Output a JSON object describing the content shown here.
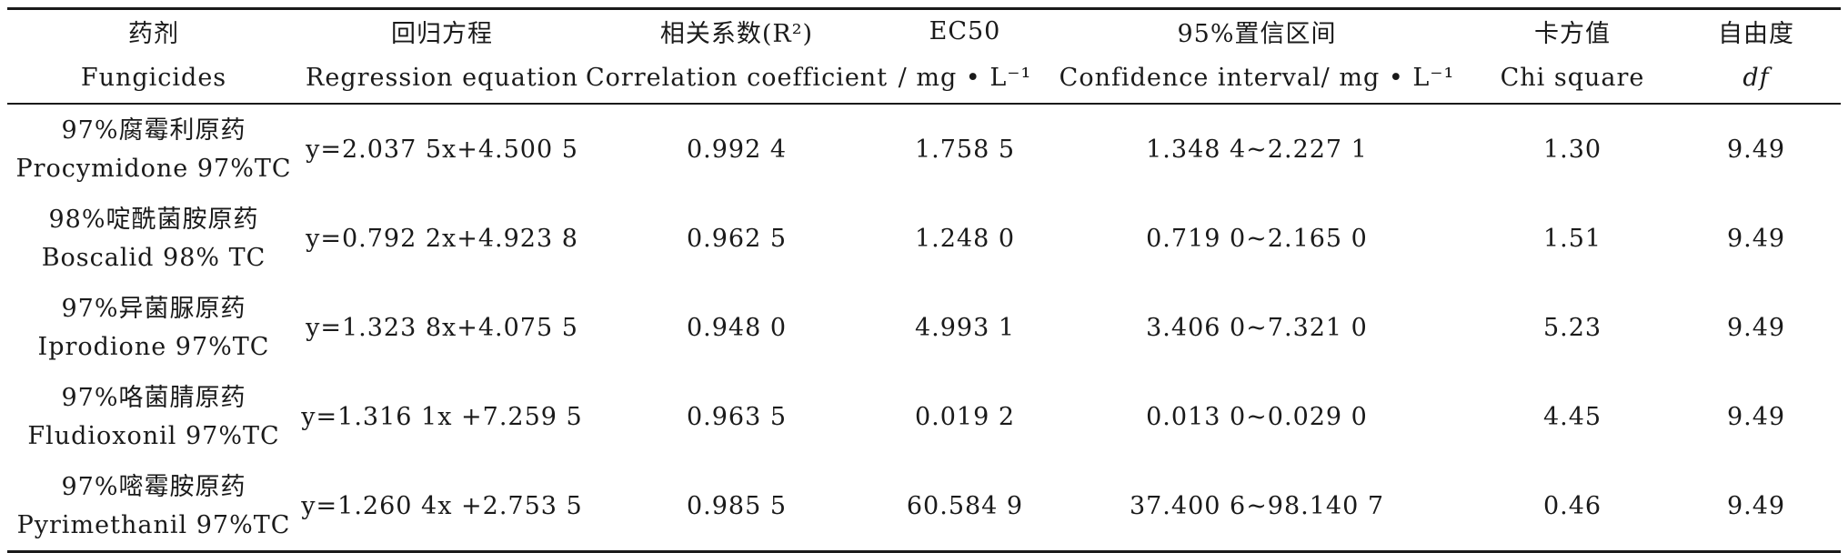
{
  "table": {
    "headers_zh": [
      "药剂",
      "回归方程",
      "相关系数(R²)",
      "EC50",
      "95%置信区间",
      "卡方值",
      "自由度"
    ],
    "headers_en": [
      "Fungicides",
      "Regression equation",
      "Correlation coefficient",
      "/ mg • L⁻¹",
      "Confidence interval/ mg • L⁻¹",
      "Chi square",
      "df"
    ],
    "rows": [
      {
        "name_zh": "97%腐霉利原药",
        "name_en": "Procymidone 97%TC",
        "equation": "y=2.037 5x+4.500 5",
        "r2": "0.992 4",
        "ec50": "1.758 5",
        "ci": "1.348 4~2.227 1",
        "chi": "1.30",
        "df": "9.49"
      },
      {
        "name_zh": "98%啶酰菌胺原药",
        "name_en": "Boscalid 98% TC",
        "equation": "y=0.792 2x+4.923 8",
        "r2": "0.962 5",
        "ec50": "1.248 0",
        "ci": "0.719 0~2.165 0",
        "chi": "1.51",
        "df": "9.49"
      },
      {
        "name_zh": "97%异菌脲原药",
        "name_en": "Iprodione 97%TC",
        "equation": "y=1.323 8x+4.075 5",
        "r2": "0.948 0",
        "ec50": "4.993 1",
        "ci": "3.406 0~7.321 0",
        "chi": "5.23",
        "df": "9.49"
      },
      {
        "name_zh": "97%咯菌腈原药",
        "name_en": "Fludioxonil 97%TC",
        "equation": "y=1.316 1x +7.259 5",
        "r2": "0.963 5",
        "ec50": "0.019 2",
        "ci": "0.013 0~0.029 0",
        "chi": "4.45",
        "df": "9.49"
      },
      {
        "name_zh": "97%嘧霉胺原药",
        "name_en": "Pyrimethanil 97%TC",
        "equation": "y=1.260 4x +2.753 5",
        "r2": "0.985 5",
        "ec50": "60.584 9",
        "ci": "37.400 6~98.140 7",
        "chi": "0.46",
        "df": "9.49"
      }
    ]
  }
}
